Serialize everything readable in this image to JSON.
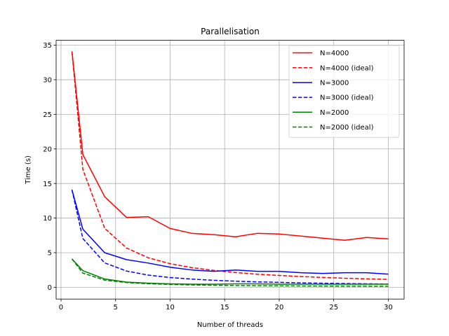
{
  "chart_data": {
    "type": "line",
    "title": "Parallelisation",
    "xlabel": "Number of threads",
    "ylabel": "Time (s)",
    "xlim": [
      -0.45,
      31.45
    ],
    "ylim": [
      -1.7,
      35.7
    ],
    "xticks": [
      0,
      5,
      10,
      15,
      20,
      25,
      30
    ],
    "yticks": [
      0,
      5,
      10,
      15,
      20,
      25,
      30,
      35
    ],
    "grid": true,
    "legend_position": "top-right",
    "series": [
      {
        "name": "N=4000",
        "color": "#ff0000",
        "dash": "solid",
        "x": [
          1,
          2,
          4,
          6,
          8,
          10,
          12,
          14,
          16,
          18,
          20,
          22,
          24,
          26,
          28,
          30
        ],
        "y": [
          34.1,
          19.2,
          13.1,
          10.1,
          10.2,
          8.5,
          7.8,
          7.6,
          7.3,
          7.8,
          7.7,
          7.4,
          7.1,
          6.8,
          7.2,
          7.0
        ]
      },
      {
        "name": "N=4000 (ideal)",
        "color": "#ff0000",
        "dash": "dashed",
        "x": [
          1,
          2,
          4,
          6,
          8,
          10,
          12,
          14,
          16,
          18,
          20,
          22,
          24,
          26,
          28,
          30
        ],
        "y": [
          34.1,
          17.05,
          8.53,
          5.68,
          4.26,
          3.41,
          2.84,
          2.44,
          2.13,
          1.89,
          1.71,
          1.55,
          1.42,
          1.31,
          1.22,
          1.14
        ]
      },
      {
        "name": "N=3000",
        "color": "#0000ff",
        "dash": "solid",
        "x": [
          1,
          2,
          4,
          6,
          8,
          10,
          12,
          14,
          16,
          18,
          20,
          22,
          24,
          26,
          28,
          30
        ],
        "y": [
          14.1,
          8.4,
          5.0,
          4.0,
          3.5,
          2.9,
          2.5,
          2.3,
          2.5,
          2.3,
          2.3,
          2.1,
          2.0,
          2.1,
          2.1,
          1.9
        ]
      },
      {
        "name": "N=3000 (ideal)",
        "color": "#0000ff",
        "dash": "dashed",
        "x": [
          1,
          2,
          4,
          6,
          8,
          10,
          12,
          14,
          16,
          18,
          20,
          22,
          24,
          26,
          28,
          30
        ],
        "y": [
          14.1,
          7.05,
          3.53,
          2.35,
          1.76,
          1.41,
          1.18,
          1.01,
          0.88,
          0.78,
          0.71,
          0.64,
          0.59,
          0.54,
          0.5,
          0.47
        ]
      },
      {
        "name": "N=2000",
        "color": "#008000",
        "dash": "solid",
        "x": [
          1,
          2,
          4,
          6,
          8,
          10,
          12,
          14,
          16,
          18,
          20,
          22,
          24,
          26,
          28,
          30
        ],
        "y": [
          4.1,
          2.4,
          1.2,
          0.75,
          0.6,
          0.5,
          0.45,
          0.45,
          0.5,
          0.5,
          0.45,
          0.45,
          0.45,
          0.45,
          0.45,
          0.45
        ]
      },
      {
        "name": "N=2000 (ideal)",
        "color": "#008000",
        "dash": "dashed",
        "x": [
          1,
          2,
          4,
          6,
          8,
          10,
          12,
          14,
          16,
          18,
          20,
          22,
          24,
          26,
          28,
          30
        ],
        "y": [
          4.1,
          2.05,
          1.03,
          0.68,
          0.51,
          0.41,
          0.34,
          0.29,
          0.26,
          0.23,
          0.21,
          0.19,
          0.17,
          0.16,
          0.15,
          0.14
        ]
      }
    ]
  }
}
